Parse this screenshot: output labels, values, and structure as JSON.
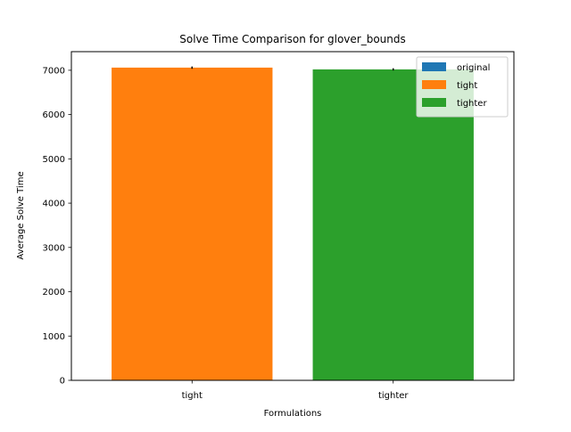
{
  "chart_data": {
    "type": "bar",
    "title": "Solve Time Comparison for glover_bounds",
    "xlabel": "Formulations",
    "ylabel": "Average Solve Time",
    "categories": [
      "tight",
      "tighter"
    ],
    "series": [
      {
        "name": "original",
        "color": "#1f77b4",
        "values": [
          null,
          null
        ]
      },
      {
        "name": "tight",
        "color": "#ff7f0e",
        "values": [
          7060,
          null
        ],
        "errors": [
          25,
          null
        ]
      },
      {
        "name": "tighter",
        "color": "#2ca02c",
        "values": [
          null,
          7020
        ],
        "errors": [
          null,
          25
        ]
      }
    ],
    "yticks": [
      0,
      1000,
      2000,
      3000,
      4000,
      5000,
      6000,
      7000
    ],
    "ylim": [
      0,
      7420
    ],
    "legend_position": "top-right",
    "grid": false
  }
}
